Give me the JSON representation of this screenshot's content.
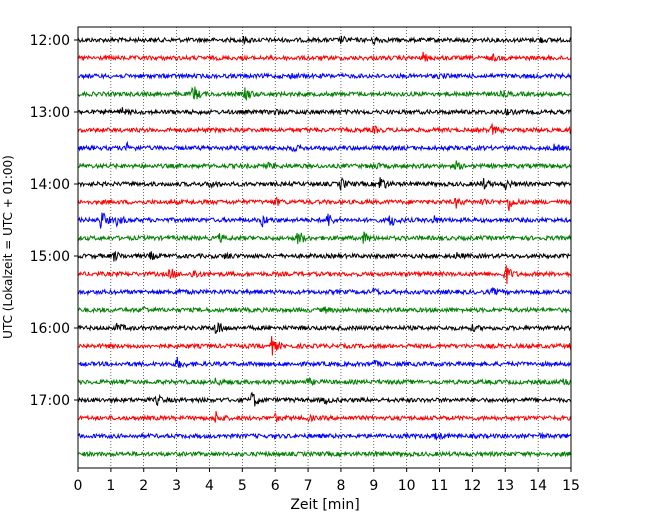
{
  "chart_data": {
    "type": "line",
    "title": "",
    "xlabel": "Zeit  [min]",
    "ylabel": "UTC (Lokalzeit = UTC + 01:00)",
    "xlim": [
      0,
      15
    ],
    "x_ticks": [
      0,
      1,
      2,
      3,
      4,
      5,
      6,
      7,
      8,
      9,
      10,
      11,
      12,
      13,
      14,
      15
    ],
    "x_tick_labels": [
      "0",
      "1",
      "2",
      "3",
      "4",
      "5",
      "6",
      "7",
      "8",
      "9",
      "10",
      "11",
      "12",
      "13",
      "14",
      "15"
    ],
    "y_tick_labels": [
      "12:00",
      "13:00",
      "14:00",
      "15:00",
      "16:00",
      "17:00"
    ],
    "grid": "vertical dotted at each minute",
    "trace_interval_minutes": 15,
    "trace_colors": [
      "#000000",
      "#ff0000",
      "#0000ff",
      "#008000"
    ],
    "traces": [
      {
        "start": "12:00",
        "color": "#000000",
        "events": [
          [
            5.0,
            0.6
          ],
          [
            8.0,
            0.5
          ],
          [
            9.0,
            0.7
          ],
          [
            14.0,
            0.5
          ]
        ]
      },
      {
        "start": "12:15",
        "color": "#ff0000",
        "events": [
          [
            10.5,
            0.7
          ],
          [
            12.6,
            0.5
          ]
        ]
      },
      {
        "start": "12:30",
        "color": "#0000ff",
        "events": [
          [
            6.5,
            0.4
          ],
          [
            11.0,
            0.4
          ]
        ]
      },
      {
        "start": "12:45",
        "color": "#008000",
        "events": [
          [
            3.5,
            1.6
          ],
          [
            5.1,
            1.2
          ],
          [
            12.9,
            0.5
          ]
        ]
      },
      {
        "start": "13:00",
        "color": "#000000",
        "events": [
          [
            1.3,
            0.7
          ],
          [
            6.0,
            0.4
          ],
          [
            13.0,
            0.4
          ]
        ]
      },
      {
        "start": "13:15",
        "color": "#ff0000",
        "events": [
          [
            9.0,
            0.5
          ],
          [
            12.6,
            0.8
          ],
          [
            15.0,
            0.8
          ]
        ]
      },
      {
        "start": "13:30",
        "color": "#0000ff",
        "events": [
          [
            1.5,
            0.6
          ],
          [
            6.5,
            0.6
          ],
          [
            14.5,
            0.5
          ]
        ]
      },
      {
        "start": "13:45",
        "color": "#008000",
        "events": [
          [
            5.8,
            0.5
          ],
          [
            9.0,
            0.5
          ],
          [
            11.5,
            0.6
          ]
        ]
      },
      {
        "start": "14:00",
        "color": "#000000",
        "events": [
          [
            4.0,
            0.6
          ],
          [
            8.0,
            1.0
          ],
          [
            9.2,
            1.5
          ],
          [
            12.3,
            1.0
          ],
          [
            13.0,
            0.8
          ]
        ]
      },
      {
        "start": "14:15",
        "color": "#ff0000",
        "events": [
          [
            6.0,
            0.6
          ],
          [
            11.5,
            0.8
          ],
          [
            12.3,
            0.7
          ],
          [
            13.1,
            1.4
          ]
        ]
      },
      {
        "start": "14:30",
        "color": "#0000ff",
        "events": [
          [
            0.7,
            1.8
          ],
          [
            1.2,
            1.0
          ],
          [
            5.6,
            1.0
          ],
          [
            7.6,
            1.2
          ],
          [
            9.5,
            1.2
          ],
          [
            10.8,
            0.7
          ]
        ]
      },
      {
        "start": "14:45",
        "color": "#008000",
        "events": [
          [
            4.3,
            0.6
          ],
          [
            6.7,
            1.5
          ],
          [
            8.7,
            1.0
          ]
        ]
      },
      {
        "start": "15:00",
        "color": "#000000",
        "events": [
          [
            1.1,
            0.8
          ],
          [
            2.2,
            0.6
          ],
          [
            4.5,
            0.6
          ],
          [
            11.5,
            0.5
          ]
        ]
      },
      {
        "start": "15:15",
        "color": "#ff0000",
        "events": [
          [
            2.8,
            1.0
          ],
          [
            3.5,
            1.0
          ],
          [
            13.0,
            2.0
          ]
        ]
      },
      {
        "start": "15:30",
        "color": "#0000ff",
        "events": [
          [
            3.0,
            0.5
          ],
          [
            9.0,
            0.5
          ],
          [
            12.6,
            0.5
          ]
        ]
      },
      {
        "start": "15:45",
        "color": "#008000",
        "events": [
          [
            2.0,
            0.5
          ],
          [
            7.5,
            0.4
          ]
        ]
      },
      {
        "start": "16:00",
        "color": "#000000",
        "events": [
          [
            1.2,
            0.8
          ],
          [
            4.2,
            1.6
          ],
          [
            12.0,
            0.4
          ]
        ]
      },
      {
        "start": "16:15",
        "color": "#ff0000",
        "events": [
          [
            5.9,
            1.5
          ],
          [
            15.0,
            0.5
          ]
        ]
      },
      {
        "start": "16:30",
        "color": "#0000ff",
        "events": [
          [
            3.0,
            1.0
          ],
          [
            9.0,
            0.4
          ]
        ]
      },
      {
        "start": "16:45",
        "color": "#008000",
        "events": [
          [
            4.2,
            0.6
          ],
          [
            7.0,
            0.5
          ],
          [
            14.8,
            0.7
          ]
        ]
      },
      {
        "start": "17:00",
        "color": "#000000",
        "events": [
          [
            2.4,
            0.8
          ],
          [
            5.3,
            1.6
          ],
          [
            7.5,
            0.5
          ]
        ]
      },
      {
        "start": "17:15",
        "color": "#ff0000",
        "events": [
          [
            4.2,
            1.0
          ],
          [
            6.0,
            0.5
          ],
          [
            7.0,
            0.4
          ]
        ]
      },
      {
        "start": "17:30",
        "color": "#0000ff",
        "events": [
          [
            10.9,
            0.6
          ],
          [
            14.0,
            0.4
          ]
        ]
      },
      {
        "start": "17:45",
        "color": "#008000",
        "events": [
          [
            9.0,
            0.3
          ]
        ]
      }
    ]
  }
}
